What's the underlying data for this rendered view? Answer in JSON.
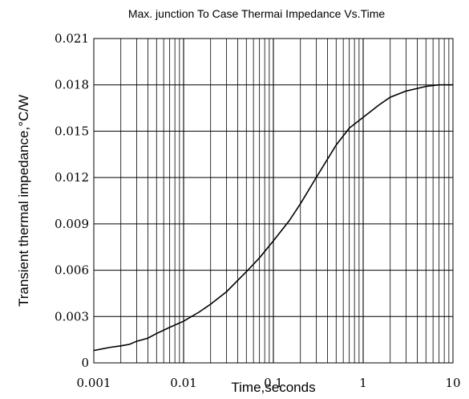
{
  "chart_data": {
    "type": "line",
    "title": "Max. junction To Case Thermai Impedance Vs.Time",
    "xlabel": "Time,seconds",
    "ylabel": "Transient thermal impedance,°C/W",
    "x_scale": "log",
    "xlim": [
      0.001,
      10
    ],
    "ylim": [
      0,
      0.021
    ],
    "grid": true,
    "x_ticks": [
      0.001,
      0.01,
      0.1,
      1,
      10
    ],
    "x_tick_labels": [
      "0.001",
      "0.01",
      "0.1",
      "1",
      "10"
    ],
    "y_ticks": [
      0,
      0.003,
      0.006,
      0.009,
      0.012,
      0.015,
      0.018,
      0.021
    ],
    "y_tick_labels": [
      "0",
      "0.003",
      "0.006",
      "0.009",
      "0.012",
      "0.015",
      "0.018",
      "0.021"
    ],
    "series": [
      {
        "x": [
          0.001,
          0.0015,
          0.002,
          0.0025,
          0.003,
          0.004,
          0.005,
          0.007,
          0.01,
          0.015,
          0.02,
          0.03,
          0.05,
          0.07,
          0.1,
          0.15,
          0.2,
          0.3,
          0.5,
          0.7,
          1,
          1.5,
          2,
          3,
          5,
          7,
          10
        ],
        "y": [
          0.0008,
          0.001,
          0.0011,
          0.0012,
          0.0014,
          0.0016,
          0.0019,
          0.0023,
          0.0027,
          0.0033,
          0.0038,
          0.0046,
          0.0059,
          0.0068,
          0.0079,
          0.0092,
          0.0103,
          0.012,
          0.0141,
          0.0152,
          0.0159,
          0.0167,
          0.0172,
          0.0176,
          0.0179,
          0.018,
          0.018
        ]
      }
    ],
    "colors": {
      "line": "#000000",
      "grid": "#000000",
      "background": "#ffffff"
    }
  }
}
